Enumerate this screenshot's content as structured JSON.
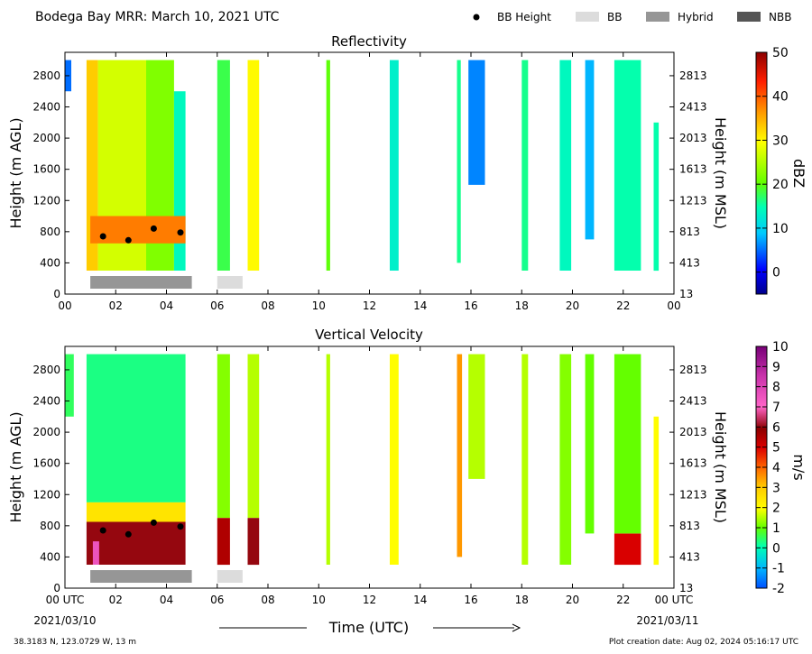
{
  "header": {
    "title": "Bodega Bay MRR:  March 10, 2021 UTC",
    "legend": [
      {
        "label": "BB Height",
        "kind": "dot",
        "color": "#000000"
      },
      {
        "label": "BB",
        "kind": "bar",
        "color": "#dcdcdc"
      },
      {
        "label": "Hybrid",
        "kind": "bar",
        "color": "#969696"
      },
      {
        "label": "NBB",
        "kind": "bar",
        "color": "#555555"
      }
    ]
  },
  "footer": {
    "location": "38.3183 N, 123.0729 W, 13 m",
    "creation": "Plot creation date: Aug 02, 2024 05:16:17 UTC",
    "xlabel": "Time (UTC)",
    "start_date": "2021/03/10",
    "end_date": "2021/03/11"
  },
  "chart_data": [
    {
      "type": "heatmap",
      "title": "Reflectivity",
      "xlabel": "",
      "ylabel": "Height (m AGL)",
      "ylabel_right": "Height (m MSL)",
      "xlim": [
        0,
        24
      ],
      "ylim": [
        0,
        3100
      ],
      "x_ticks": [
        "00",
        "02",
        "04",
        "06",
        "08",
        "10",
        "12",
        "14",
        "16",
        "18",
        "20",
        "22",
        "00"
      ],
      "y_ticks": [
        0,
        400,
        800,
        1200,
        1600,
        2000,
        2400,
        2800
      ],
      "y_ticks_right": [
        "13",
        "413",
        "813",
        "1213",
        "1613",
        "2013",
        "2413",
        "2813"
      ],
      "colorbar": {
        "label": "dBZ",
        "min": -5,
        "max": 50,
        "ticks": [
          0,
          10,
          20,
          30,
          40,
          50
        ]
      },
      "bb_height_points": [
        [
          1.5,
          740
        ],
        [
          2.5,
          690
        ],
        [
          3.5,
          840
        ],
        [
          4.55,
          790
        ]
      ],
      "bb_type_bars": [
        {
          "start": 1.0,
          "end": 5.0,
          "type": "Hybrid"
        },
        {
          "start": 6.0,
          "end": 7.0,
          "type": "BB"
        }
      ],
      "data_columns": [
        {
          "start": 0.0,
          "end": 0.25,
          "bottom": 2600,
          "top": 3000,
          "value": 5
        },
        {
          "start": 0.85,
          "end": 1.3,
          "bottom": 300,
          "top": 3000,
          "value": 33
        },
        {
          "start": 1.3,
          "end": 3.2,
          "bottom": 300,
          "top": 3000,
          "value": 27
        },
        {
          "start": 3.2,
          "end": 4.3,
          "bottom": 300,
          "top": 3000,
          "value": 22
        },
        {
          "start": 4.3,
          "end": 4.75,
          "bottom": 300,
          "top": 2600,
          "value": 14
        },
        {
          "start": 1.0,
          "end": 4.75,
          "bottom": 650,
          "top": 1000,
          "value": 38
        },
        {
          "start": 6.0,
          "end": 6.5,
          "bottom": 300,
          "top": 3000,
          "value": 18
        },
        {
          "start": 7.2,
          "end": 7.65,
          "bottom": 300,
          "top": 3000,
          "value": 30
        },
        {
          "start": 10.3,
          "end": 10.45,
          "bottom": 300,
          "top": 3000,
          "value": 20
        },
        {
          "start": 12.8,
          "end": 13.15,
          "bottom": 300,
          "top": 3000,
          "value": 13
        },
        {
          "start": 15.45,
          "end": 15.6,
          "bottom": 400,
          "top": 3000,
          "value": 16
        },
        {
          "start": 15.9,
          "end": 16.55,
          "bottom": 1400,
          "top": 3000,
          "value": 6
        },
        {
          "start": 18.0,
          "end": 18.25,
          "bottom": 300,
          "top": 3000,
          "value": 16
        },
        {
          "start": 19.5,
          "end": 19.95,
          "bottom": 300,
          "top": 3000,
          "value": 14
        },
        {
          "start": 20.5,
          "end": 20.85,
          "bottom": 700,
          "top": 3000,
          "value": 8
        },
        {
          "start": 21.65,
          "end": 22.7,
          "bottom": 300,
          "top": 3000,
          "value": 15
        },
        {
          "start": 23.2,
          "end": 23.4,
          "bottom": 300,
          "top": 2200,
          "value": 15
        }
      ]
    },
    {
      "type": "heatmap",
      "title": "Vertical Velocity",
      "xlabel": "Time (UTC)",
      "ylabel": "Height (m AGL)",
      "ylabel_right": "Height (m MSL)",
      "xlim": [
        0,
        24
      ],
      "ylim": [
        0,
        3100
      ],
      "x_ticks": [
        "00 UTC",
        "02",
        "04",
        "06",
        "08",
        "10",
        "12",
        "14",
        "16",
        "18",
        "20",
        "22",
        "00 UTC"
      ],
      "y_ticks": [
        0,
        400,
        800,
        1200,
        1600,
        2000,
        2400,
        2800
      ],
      "y_ticks_right": [
        "13",
        "413",
        "813",
        "1213",
        "1613",
        "2013",
        "2413",
        "2813"
      ],
      "colorbar": {
        "label": "m/s",
        "min": -2,
        "max": 10,
        "ticks": [
          -2,
          -1,
          0,
          1,
          2,
          3,
          4,
          5,
          6,
          7,
          8,
          9,
          10
        ]
      },
      "bb_height_points": [
        [
          1.5,
          740
        ],
        [
          2.5,
          690
        ],
        [
          3.5,
          840
        ],
        [
          4.55,
          790
        ]
      ],
      "bb_type_bars": [
        {
          "start": 1.0,
          "end": 5.0,
          "type": "Hybrid"
        },
        {
          "start": 6.0,
          "end": 7.0,
          "type": "BB"
        }
      ],
      "data_columns": [
        {
          "start": 0.0,
          "end": 0.35,
          "bottom": 2200,
          "top": 3000,
          "value": 0.5
        },
        {
          "start": 0.85,
          "end": 4.75,
          "bottom": 1100,
          "top": 3000,
          "value": 0.3
        },
        {
          "start": 0.85,
          "end": 4.75,
          "bottom": 850,
          "top": 1100,
          "value": 2.5
        },
        {
          "start": 0.85,
          "end": 4.75,
          "bottom": 300,
          "top": 850,
          "value": 6.0
        },
        {
          "start": 1.1,
          "end": 1.35,
          "bottom": 300,
          "top": 600,
          "value": 7.5
        },
        {
          "start": 6.0,
          "end": 6.5,
          "bottom": 900,
          "top": 3000,
          "value": 1.2
        },
        {
          "start": 6.0,
          "end": 6.5,
          "bottom": 300,
          "top": 900,
          "value": 5.5
        },
        {
          "start": 7.2,
          "end": 7.65,
          "bottom": 900,
          "top": 3000,
          "value": 1.5
        },
        {
          "start": 7.2,
          "end": 7.65,
          "bottom": 300,
          "top": 900,
          "value": 6.0
        },
        {
          "start": 10.3,
          "end": 10.45,
          "bottom": 300,
          "top": 3000,
          "value": 1.5
        },
        {
          "start": 12.8,
          "end": 13.15,
          "bottom": 300,
          "top": 3000,
          "value": 2.0
        },
        {
          "start": 15.45,
          "end": 15.65,
          "bottom": 400,
          "top": 3000,
          "value": 3.5
        },
        {
          "start": 15.9,
          "end": 16.55,
          "bottom": 1400,
          "top": 3000,
          "value": 1.5
        },
        {
          "start": 18.0,
          "end": 18.25,
          "bottom": 300,
          "top": 3000,
          "value": 1.5
        },
        {
          "start": 19.5,
          "end": 19.95,
          "bottom": 300,
          "top": 3000,
          "value": 1.2
        },
        {
          "start": 20.5,
          "end": 20.85,
          "bottom": 700,
          "top": 3000,
          "value": 1.0
        },
        {
          "start": 21.65,
          "end": 22.7,
          "bottom": 700,
          "top": 3000,
          "value": 1.0
        },
        {
          "start": 21.65,
          "end": 22.7,
          "bottom": 300,
          "top": 700,
          "value": 5.0
        },
        {
          "start": 23.2,
          "end": 23.4,
          "bottom": 300,
          "top": 2200,
          "value": 2.0
        }
      ]
    }
  ]
}
